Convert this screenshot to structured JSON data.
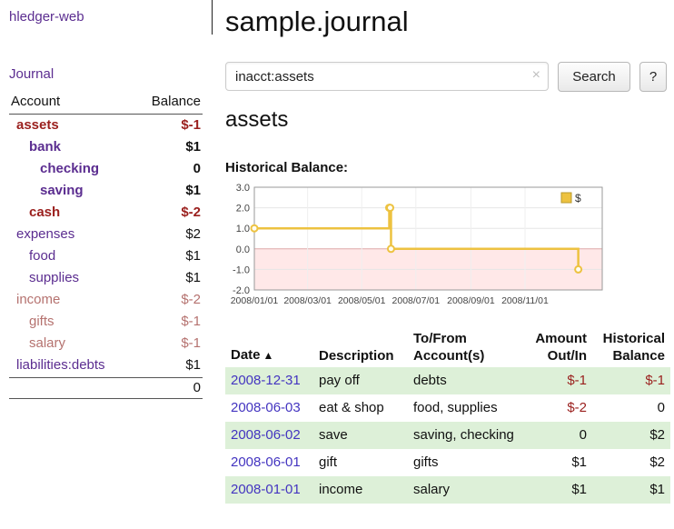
{
  "colors": {
    "link_purple": "#5b2d90",
    "date_link": "#4334c0",
    "negative": "#9a1f1d",
    "negative_muted": "#b5726f",
    "row_highlight": "#ddf0d8",
    "series_gold": "#EDC240"
  },
  "sidebar": {
    "app_title": "hledger-web",
    "journal_link": "Journal",
    "accounts": {
      "header": {
        "account": "Account",
        "balance": "Balance"
      },
      "rows": [
        {
          "name": "assets",
          "balance": "$-1"
        },
        {
          "name": "bank",
          "balance": "$1"
        },
        {
          "name": "checking",
          "balance": "0"
        },
        {
          "name": "saving",
          "balance": "$1"
        },
        {
          "name": "cash",
          "balance": "$-2"
        },
        {
          "name": "expenses",
          "balance": "$2"
        },
        {
          "name": "food",
          "balance": "$1"
        },
        {
          "name": "supplies",
          "balance": "$1"
        },
        {
          "name": "income",
          "balance": "$-2"
        },
        {
          "name": "gifts",
          "balance": "$-1"
        },
        {
          "name": "salary",
          "balance": "$-1"
        },
        {
          "name": "liabilities:debts",
          "balance": "$1"
        }
      ],
      "total": "0"
    }
  },
  "main": {
    "title": "sample.journal",
    "search": {
      "value": "inacct:assets",
      "clear": "×",
      "button": "Search",
      "help": "?"
    },
    "account_title": "assets",
    "chart_label": "Historical Balance:",
    "register": {
      "headers": {
        "date": "Date",
        "sort": "▲",
        "description": "Description",
        "tofrom": "To/From Account(s)",
        "amount": "Amount Out/In",
        "balance": "Historical Balance"
      },
      "rows": [
        {
          "date": "2008-12-31",
          "description": "pay off",
          "accounts": "debts",
          "amount": "$-1",
          "balance": "$-1"
        },
        {
          "date": "2008-06-03",
          "description": "eat & shop",
          "accounts": "food, supplies",
          "amount": "$-2",
          "balance": "0"
        },
        {
          "date": "2008-06-02",
          "description": "save",
          "accounts": "saving, checking",
          "amount": "0",
          "balance": "$2"
        },
        {
          "date": "2008-06-01",
          "description": "gift",
          "accounts": "gifts",
          "amount": "$1",
          "balance": "$2"
        },
        {
          "date": "2008-01-01",
          "description": "income",
          "accounts": "salary",
          "amount": "$1",
          "balance": "$1"
        }
      ]
    }
  },
  "chart_data": {
    "type": "line",
    "title": "Historical Balance",
    "step": true,
    "legend_label": "$",
    "legend_position": "top-right",
    "series_color": "#EDC240",
    "negative_region_color": "#ffd9d9",
    "grid": true,
    "ylim": [
      -2.0,
      3.0
    ],
    "y_ticks": [
      3.0,
      2.0,
      1.0,
      0.0,
      -1.0,
      -2.0
    ],
    "x_ticks": [
      "2008/01/01",
      "2008/03/01",
      "2008/05/01",
      "2008/07/01",
      "2008/09/01",
      "2008/11/01"
    ],
    "series": [
      {
        "name": "$",
        "points": [
          [
            "2008-01-01",
            1
          ],
          [
            "2008-06-01",
            2
          ],
          [
            "2008-06-02",
            2
          ],
          [
            "2008-06-03",
            0
          ],
          [
            "2008-12-31",
            -1
          ]
        ]
      }
    ]
  }
}
